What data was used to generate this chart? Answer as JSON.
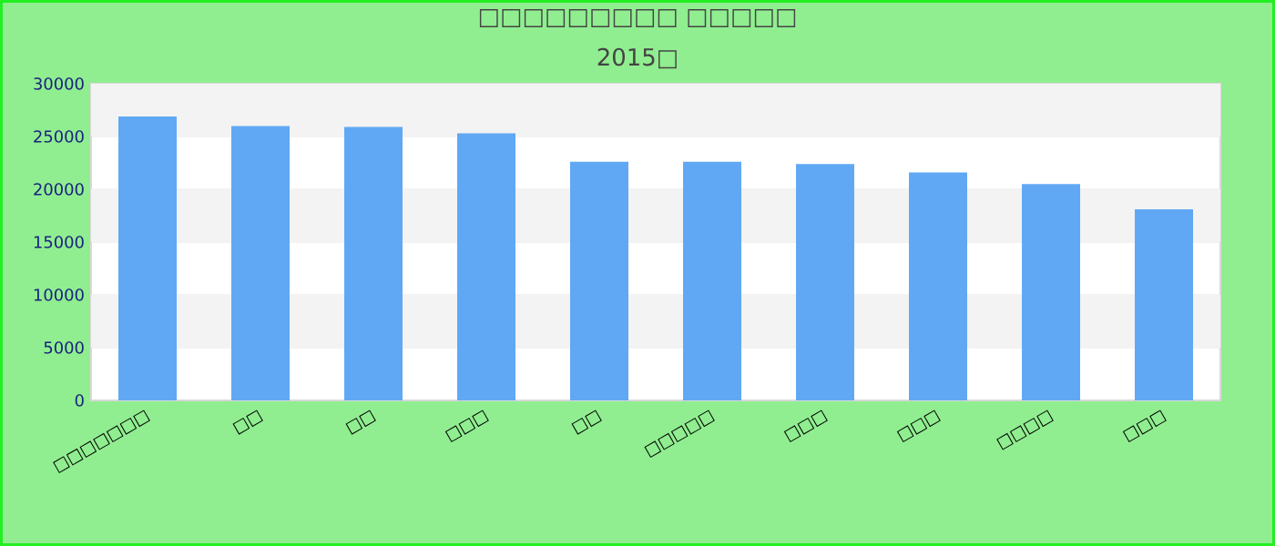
{
  "chart_data": {
    "type": "bar",
    "title": "□□□□□□□□□ □□□□□",
    "subtitle": "2015□",
    "categories": [
      "□□□□□□□",
      "□□",
      "□□",
      "□□□",
      "□□",
      "□□□□□",
      "□□□",
      "□□□",
      "□□□□",
      "□□□"
    ],
    "values": [
      26900,
      26000,
      25900,
      25300,
      22600,
      22600,
      22400,
      21600,
      20500,
      18100
    ],
    "color": "#60a8f4",
    "ylim": [
      0,
      30000
    ],
    "yticks": [
      0,
      5000,
      10000,
      15000,
      20000,
      25000,
      30000
    ],
    "grid": "y"
  }
}
